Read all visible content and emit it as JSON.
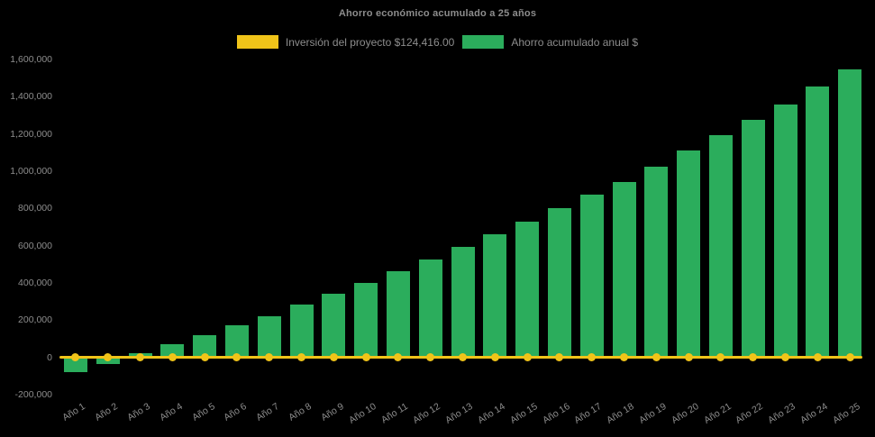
{
  "chart_data": {
    "type": "bar",
    "title": "Ahorro económico acumulado a 25 años",
    "categories": [
      "Año 1",
      "Año 2",
      "Año 3",
      "Año 4",
      "Año 5",
      "Año 6",
      "Año 7",
      "Año 8",
      "Año 9",
      "Año 10",
      "Año 11",
      "Año 12",
      "Año 13",
      "Año 14",
      "Año 15",
      "Año 16",
      "Año 17",
      "Año 18",
      "Año 19",
      "Año 20",
      "Año 21",
      "Año 22",
      "Año 23",
      "Año 24",
      "Año 25"
    ],
    "series": [
      {
        "name": "Inversión del proyecto $124,416.00",
        "type": "line",
        "color": "#F0C419",
        "values": [
          0,
          0,
          0,
          0,
          0,
          0,
          0,
          0,
          0,
          0,
          0,
          0,
          0,
          0,
          0,
          0,
          0,
          0,
          0,
          0,
          0,
          0,
          0,
          0,
          0
        ]
      },
      {
        "name": "Ahorro acumulado anual $",
        "type": "bar",
        "color": "#2BAD5C",
        "values": [
          -78000,
          -36000,
          21000,
          70000,
          121000,
          172000,
          223000,
          282000,
          340000,
          398000,
          465000,
          527000,
          592000,
          659000,
          731000,
          800000,
          873000,
          944000,
          1024000,
          1111000,
          1194000,
          1274000,
          1359000,
          1456000,
          1545000
        ]
      }
    ],
    "ylim": [
      -200000,
      1600000
    ],
    "ytick_step": 200000,
    "yticks": [
      "1,600,000",
      "1,400,000",
      "1,200,000",
      "1,000,000",
      "800,000",
      "600,000",
      "400,000",
      "200,000",
      "0",
      "-200,000"
    ],
    "xlabel": "",
    "ylabel": "",
    "grid": false,
    "legend_position": "top",
    "background": "#000000",
    "text_color": "#8d8d8d"
  }
}
